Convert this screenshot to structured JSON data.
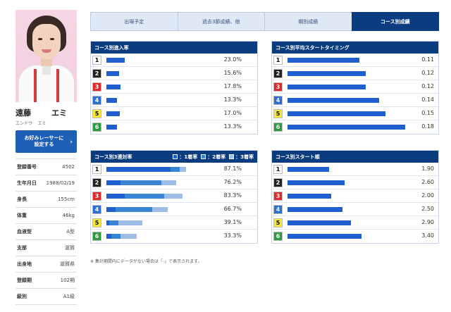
{
  "profile": {
    "surname": "遠藤",
    "given": "エミ",
    "surname_kana": "エンドウ",
    "given_kana": "エミ",
    "fav_button": "お好みレーサーに\n設定する",
    "stats": [
      {
        "label": "登録番号",
        "value": "4502"
      },
      {
        "label": "生年月日",
        "value": "1988/02/19"
      },
      {
        "label": "身長",
        "value": "155cm"
      },
      {
        "label": "体重",
        "value": "46kg"
      },
      {
        "label": "血液型",
        "value": "A型"
      },
      {
        "label": "支部",
        "value": "滋賀"
      },
      {
        "label": "出身地",
        "value": "滋賀県"
      },
      {
        "label": "登録期",
        "value": "102期"
      },
      {
        "label": "級別",
        "value": "A1級"
      }
    ]
  },
  "tabs": [
    {
      "label": "出場予定",
      "active": false
    },
    {
      "label": "過去3節成績、他",
      "active": false
    },
    {
      "label": "期別成績",
      "active": false
    },
    {
      "label": "コース別成績",
      "active": true
    }
  ],
  "lane_colors": {
    "1": {
      "bg": "#ffffff",
      "fg": "#000000"
    },
    "2": {
      "bg": "#222222",
      "fg": "#ffffff"
    },
    "3": {
      "bg": "#e02a2a",
      "fg": "#ffffff"
    },
    "4": {
      "bg": "#2e6fd4",
      "fg": "#ffffff"
    },
    "5": {
      "bg": "#f5e63a",
      "fg": "#000000"
    },
    "6": {
      "bg": "#2e9a3f",
      "fg": "#ffffff"
    }
  },
  "bar_colors": {
    "first": "#1f5fcf",
    "second": "#3a84d4",
    "third": "#9dbde6"
  },
  "panels": {
    "entry_rate": {
      "title": "コース別進入率",
      "rows": [
        {
          "lane": "1",
          "percent": 23.0,
          "label": "23.0%"
        },
        {
          "lane": "2",
          "percent": 15.6,
          "label": "15.6%"
        },
        {
          "lane": "3",
          "percent": 17.8,
          "label": "17.8%"
        },
        {
          "lane": "4",
          "percent": 13.3,
          "label": "13.3%"
        },
        {
          "lane": "5",
          "percent": 17.0,
          "label": "17.0%"
        },
        {
          "lane": "6",
          "percent": 13.3,
          "label": "13.3%"
        }
      ]
    },
    "avg_start": {
      "title": "コース別平均スタートタイミング",
      "rows": [
        {
          "lane": "1",
          "timing": 0.11,
          "label": "0.11"
        },
        {
          "lane": "2",
          "timing": 0.12,
          "label": "0.12"
        },
        {
          "lane": "3",
          "timing": 0.12,
          "label": "0.12"
        },
        {
          "lane": "4",
          "timing": 0.14,
          "label": "0.14"
        },
        {
          "lane": "5",
          "timing": 0.15,
          "label": "0.15"
        },
        {
          "lane": "6",
          "timing": 0.18,
          "label": "0.18"
        }
      ]
    },
    "top3_rate": {
      "title": "コース別3連対率",
      "legend": [
        "1着率",
        "2着率",
        "3着率"
      ],
      "rows": [
        {
          "lane": "1",
          "first": 70.0,
          "second": 10.0,
          "third": 7.1,
          "label": "87.1%"
        },
        {
          "lane": "2",
          "first": 15.0,
          "second": 45.0,
          "third": 16.2,
          "label": "76.2%"
        },
        {
          "lane": "3",
          "first": 20.0,
          "second": 43.0,
          "third": 20.3,
          "label": "83.3%"
        },
        {
          "lane": "4",
          "first": 10.0,
          "second": 40.0,
          "third": 16.7,
          "label": "66.7%"
        },
        {
          "lane": "5",
          "first": 3.0,
          "second": 10.0,
          "third": 26.1,
          "label": "39.1%"
        },
        {
          "lane": "6",
          "first": 5.0,
          "second": 10.0,
          "third": 18.3,
          "label": "33.3%"
        }
      ]
    },
    "start_order": {
      "title": "コース別スタート順",
      "rows": [
        {
          "lane": "1",
          "order": 1.9,
          "label": "1.90"
        },
        {
          "lane": "2",
          "order": 2.6,
          "label": "2.60"
        },
        {
          "lane": "3",
          "order": 2.0,
          "label": "2.00"
        },
        {
          "lane": "4",
          "order": 2.5,
          "label": "2.50"
        },
        {
          "lane": "5",
          "order": 2.9,
          "label": "2.90"
        },
        {
          "lane": "6",
          "order": 3.4,
          "label": "3.40"
        }
      ]
    }
  },
  "note": "※ 集計期間内にデータがない場合は「-」で表示されます。"
}
